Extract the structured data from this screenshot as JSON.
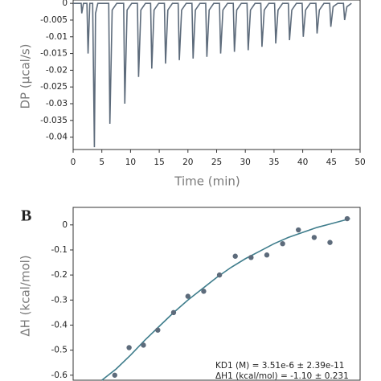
{
  "chart_data": [
    {
      "type": "line",
      "ylabel": "DP (µcal/s)",
      "xlabel": "Time (min)",
      "xlim": [
        0,
        50
      ],
      "xticks": [
        0,
        5,
        10,
        15,
        20,
        25,
        30,
        35,
        40,
        45,
        50
      ],
      "ylim": [
        -0.0437,
        0.001
      ],
      "yticks": [
        0,
        -0.005,
        -0.01,
        -0.015,
        -0.02,
        -0.025,
        -0.03,
        -0.035,
        -0.04
      ],
      "color": "#5d6b7b",
      "x": [
        0,
        1.4,
        1.5,
        1.8,
        2.4,
        2.6,
        2.9,
        3.4,
        3.7,
        3.9,
        4.3,
        5,
        6.2,
        6.4,
        6.8,
        7.6,
        8.8,
        9,
        9.4,
        10.2,
        11.2,
        11.4,
        11.8,
        12.6,
        13.5,
        13.7,
        14.1,
        14.9,
        15.9,
        16.1,
        16.5,
        17.3,
        18.3,
        18.5,
        18.9,
        19.7,
        20.7,
        20.9,
        21.3,
        22.1,
        23.1,
        23.3,
        23.7,
        24.5,
        25.5,
        25.7,
        26.1,
        26.9,
        27.9,
        28.1,
        28.5,
        29.3,
        30.3,
        30.5,
        30.9,
        31.7,
        32.7,
        32.9,
        33.3,
        34.1,
        35.1,
        35.3,
        35.7,
        36.5,
        37.5,
        37.7,
        38.1,
        38.9,
        39.9,
        40.1,
        40.5,
        41.3,
        42.3,
        42.5,
        42.9,
        43.7,
        44.7,
        44.9,
        45.3,
        46.1,
        47.1,
        47.3,
        47.7,
        48.5
      ],
      "values": [
        0,
        0,
        -0.003,
        0,
        0,
        -0.015,
        0,
        0,
        -0.043,
        -0.003,
        0,
        0,
        0,
        -0.036,
        -0.002,
        0,
        0,
        -0.03,
        -0.002,
        0,
        0,
        -0.022,
        -0.002,
        0,
        0,
        -0.0195,
        -0.002,
        0,
        0,
        -0.018,
        -0.002,
        0,
        0,
        -0.017,
        -0.002,
        0,
        0,
        -0.0165,
        -0.002,
        0,
        0,
        -0.016,
        -0.002,
        0,
        0,
        -0.015,
        -0.002,
        0,
        0,
        -0.0145,
        -0.002,
        0,
        0,
        -0.014,
        -0.002,
        0,
        0,
        -0.013,
        -0.002,
        0,
        0,
        -0.012,
        -0.002,
        0,
        0,
        -0.011,
        -0.002,
        0,
        0,
        -0.01,
        -0.002,
        0,
        0,
        -0.009,
        -0.002,
        0,
        0,
        -0.007,
        -0.001,
        0,
        0,
        -0.005,
        -0.001,
        0
      ]
    },
    {
      "type": "scatter",
      "panel_label": "B",
      "ylabel": "ΔH (kcal/mol)",
      "xlim": [
        0,
        2
      ],
      "ylim": [
        -0.62,
        0.07
      ],
      "yticks": [
        0,
        -0.1,
        -0.2,
        -0.3,
        -0.4,
        -0.5,
        -0.6
      ],
      "points": {
        "color": "#5d6b7b",
        "x": [
          0.29,
          0.39,
          0.49,
          0.59,
          0.7,
          0.8,
          0.91,
          1.02,
          1.13,
          1.24,
          1.35,
          1.46,
          1.57,
          1.68,
          1.79,
          1.91
        ],
        "values": [
          -0.6,
          -0.49,
          -0.48,
          -0.42,
          -0.35,
          -0.285,
          -0.265,
          -0.2,
          -0.125,
          -0.13,
          -0.12,
          -0.075,
          -0.02,
          -0.05,
          -0.07,
          0.025
        ]
      },
      "fit": {
        "color": "#3f7d8c",
        "x": [
          0.2,
          0.3,
          0.4,
          0.5,
          0.6,
          0.7,
          0.8,
          0.9,
          1.0,
          1.1,
          1.2,
          1.3,
          1.4,
          1.5,
          1.6,
          1.7,
          1.8,
          1.93
        ],
        "values": [
          -0.62,
          -0.575,
          -0.52,
          -0.46,
          -0.405,
          -0.35,
          -0.3,
          -0.255,
          -0.21,
          -0.17,
          -0.135,
          -0.105,
          -0.075,
          -0.05,
          -0.03,
          -0.01,
          0.005,
          0.025
        ]
      },
      "annotations": [
        "KD1 (M) = 3.51e-6 ± 2.39e-11",
        "ΔH1 (kcal/mol) = -1.10 ± 0.231"
      ]
    }
  ]
}
